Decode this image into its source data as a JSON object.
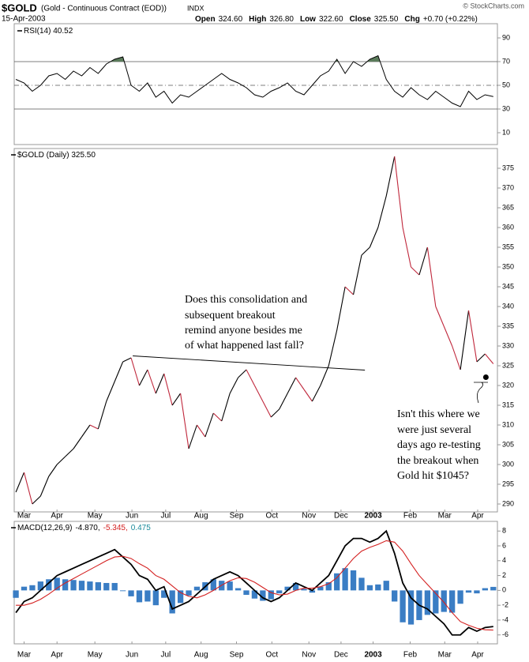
{
  "header": {
    "symbol": "$GOLD",
    "name": "(Gold - Continuous Contract (EOD))",
    "exchange": "INDX",
    "date": "15-Apr-2003",
    "quote": [
      {
        "label": "Open",
        "value": "324.60"
      },
      {
        "label": "High",
        "value": "326.80"
      },
      {
        "label": "Low",
        "value": "322.60"
      },
      {
        "label": "Close",
        "value": "325.50"
      },
      {
        "label": "Chg",
        "value": "+0.70 (+0.22%)"
      }
    ],
    "credit": "© StockCharts.com"
  },
  "chart_data": [
    {
      "type": "line",
      "label": "RSI(14) 40.52",
      "xlim": [
        -0.2,
        58.5
      ],
      "ylim": [
        0,
        102
      ],
      "yticks": [
        10,
        30,
        50,
        70,
        90
      ],
      "hlines": [
        {
          "value": 70,
          "dash": false
        },
        {
          "value": 50,
          "dash": true
        },
        {
          "value": 30,
          "dash": false
        }
      ],
      "fill_above": 70,
      "fill_color": "#5b7b5b",
      "series": [
        {
          "name": "RSI(14)",
          "color": "#000000",
          "values": [
            55,
            52,
            45,
            50,
            58,
            60,
            55,
            62,
            58,
            65,
            60,
            68,
            72,
            74,
            50,
            45,
            52,
            40,
            45,
            35,
            42,
            40,
            45,
            50,
            55,
            60,
            55,
            52,
            48,
            42,
            40,
            45,
            48,
            52,
            45,
            42,
            50,
            58,
            62,
            72,
            60,
            70,
            66,
            72,
            75,
            55,
            45,
            40,
            48,
            42,
            38,
            45,
            40,
            35,
            32,
            45,
            38,
            42,
            40.52
          ]
        }
      ]
    },
    {
      "type": "line",
      "label": "$GOLD (Daily) 325.50",
      "xlim": [
        -0.2,
        58.5
      ],
      "ylim": [
        288,
        380
      ],
      "yticks": [
        290,
        295,
        300,
        305,
        310,
        315,
        320,
        325,
        330,
        335,
        340,
        345,
        350,
        355,
        360,
        365,
        370,
        375
      ],
      "xticks": [
        {
          "value": 1,
          "label": "Mar"
        },
        {
          "value": 5,
          "label": "Apr"
        },
        {
          "value": 9.6,
          "label": "May"
        },
        {
          "value": 14.1,
          "label": "Jun"
        },
        {
          "value": 18.2,
          "label": "Jul"
        },
        {
          "value": 22.5,
          "label": "Aug"
        },
        {
          "value": 26.8,
          "label": "Sep"
        },
        {
          "value": 31.1,
          "label": "Oct"
        },
        {
          "value": 35.6,
          "label": "Nov"
        },
        {
          "value": 39.5,
          "label": "Dec"
        },
        {
          "value": 43.4,
          "label": "2003",
          "bold": true
        },
        {
          "value": 47.9,
          "label": "Feb"
        },
        {
          "value": 52.1,
          "label": "Mar"
        },
        {
          "value": 56.1,
          "label": "Apr"
        }
      ],
      "series": [
        {
          "name": "$GOLD",
          "up_color": "#000000",
          "down_color": "#c0283c",
          "values": [
            293,
            298,
            290,
            292,
            297,
            300,
            302,
            304,
            307,
            310,
            309,
            316,
            321,
            326,
            327,
            320,
            324,
            318,
            323,
            315,
            318,
            304,
            310,
            307,
            313,
            311,
            318,
            322,
            324,
            320,
            316,
            312,
            314,
            318,
            322,
            319,
            316,
            320,
            325,
            334,
            345,
            343,
            353,
            355,
            360,
            368,
            378,
            360,
            350,
            348,
            355,
            340,
            335,
            330,
            324,
            339,
            326,
            328,
            325.5
          ]
        }
      ],
      "trendline": {
        "x": [
          14.2,
          42.4
        ],
        "y": [
          327.5,
          323.9
        ]
      },
      "marker": {
        "x": 57.1,
        "y": 322.1
      },
      "annotations": [
        {
          "lines": [
            "Does this consolidation and",
            "subsequent breakout",
            "remind anyone besides me",
            "of what happened last fall?"
          ]
        },
        {
          "lines": [
            "Isn't this where we",
            "were just several",
            "days ago re-testing",
            "the breakout when",
            "Gold hit $1045?"
          ]
        }
      ]
    },
    {
      "type": "line",
      "label": "MACD(12,26,9)",
      "xlim": [
        -0.2,
        58.5
      ],
      "ylim": [
        -7.2,
        9.3
      ],
      "yticks": [
        -6,
        -4,
        -2,
        0,
        2,
        4,
        6,
        8
      ],
      "xticks": [
        {
          "value": 1,
          "label": "Mar"
        },
        {
          "value": 5,
          "label": "Apr"
        },
        {
          "value": 9.6,
          "label": "May"
        },
        {
          "value": 14.1,
          "label": "Jun"
        },
        {
          "value": 18.2,
          "label": "Jul"
        },
        {
          "value": 22.5,
          "label": "Aug"
        },
        {
          "value": 26.8,
          "label": "Sep"
        },
        {
          "value": 31.1,
          "label": "Oct"
        },
        {
          "value": 35.6,
          "label": "Nov"
        },
        {
          "value": 39.5,
          "label": "Dec"
        },
        {
          "value": 43.4,
          "label": "2003",
          "bold": true
        },
        {
          "value": 47.9,
          "label": "Feb"
        },
        {
          "value": 52.1,
          "label": "Mar"
        },
        {
          "value": 56.1,
          "label": "Apr"
        }
      ],
      "series": [
        {
          "kind": "bar",
          "legend": "0.475",
          "color": "#3a7dc4",
          "values": [
            -1,
            0.5,
            0.7,
            1.2,
            1.5,
            1.7,
            1.5,
            1.4,
            1.3,
            1.2,
            1.1,
            1,
            1,
            -0.1,
            -0.8,
            -1.6,
            -1.5,
            -2,
            -1,
            -3.1,
            -1.7,
            -0.7,
            0.5,
            1.1,
            1.5,
            1.3,
            1.2,
            0.3,
            -0.6,
            -1.1,
            -1.4,
            -1.2,
            -0.4,
            0.5,
            1,
            0.2,
            -0.3,
            0.5,
            1.1,
            2.3,
            3,
            2.7,
            1.7,
            0.7,
            0.8,
            1.3,
            -1.5,
            -4.3,
            -4.6,
            -4,
            -3.3,
            -3.1,
            -2.9,
            -3,
            -1.8,
            -0.3,
            -0.4,
            0.3,
            0.475
          ]
        },
        {
          "kind": "line",
          "legend": "-4.870,",
          "color": "#000000",
          "width": 1.8,
          "values": [
            -3,
            -1.5,
            -1,
            0,
            1,
            2,
            2.5,
            3,
            3.5,
            4,
            4.5,
            5,
            5.5,
            4.5,
            3.5,
            2,
            1.5,
            0,
            0.5,
            -2.5,
            -2,
            -1.5,
            -0.5,
            0.5,
            1.5,
            2,
            2.5,
            2,
            1,
            0,
            -1,
            -1.5,
            -1,
            0,
            1,
            0.5,
            0,
            1,
            2,
            4,
            6,
            7,
            7,
            6.5,
            7,
            8,
            5,
            1,
            -1,
            -2,
            -2.5,
            -3.5,
            -4.5,
            -6,
            -6,
            -5,
            -5.5,
            -5,
            -4.87
          ]
        },
        {
          "kind": "line",
          "legend": "-5.345,",
          "color": "#d42020",
          "width": 1.1,
          "values": [
            -2,
            -2,
            -1.7,
            -1.2,
            -0.5,
            0.3,
            1,
            1.6,
            2.2,
            2.8,
            3.4,
            4,
            4.5,
            4.6,
            4.3,
            3.6,
            3,
            2,
            1.5,
            0.6,
            -0.3,
            -0.8,
            -1,
            -0.6,
            0,
            0.7,
            1.3,
            1.7,
            1.6,
            1.1,
            0.4,
            -0.3,
            -0.6,
            -0.5,
            0,
            0.3,
            0.3,
            0.5,
            0.9,
            1.7,
            3,
            4.3,
            5.3,
            5.8,
            6.2,
            6.7,
            6.5,
            5.3,
            3.6,
            2,
            0.8,
            -0.4,
            -1.6,
            -3,
            -4.2,
            -4.7,
            -5.1,
            -5.3,
            -5.345
          ]
        }
      ]
    }
  ]
}
